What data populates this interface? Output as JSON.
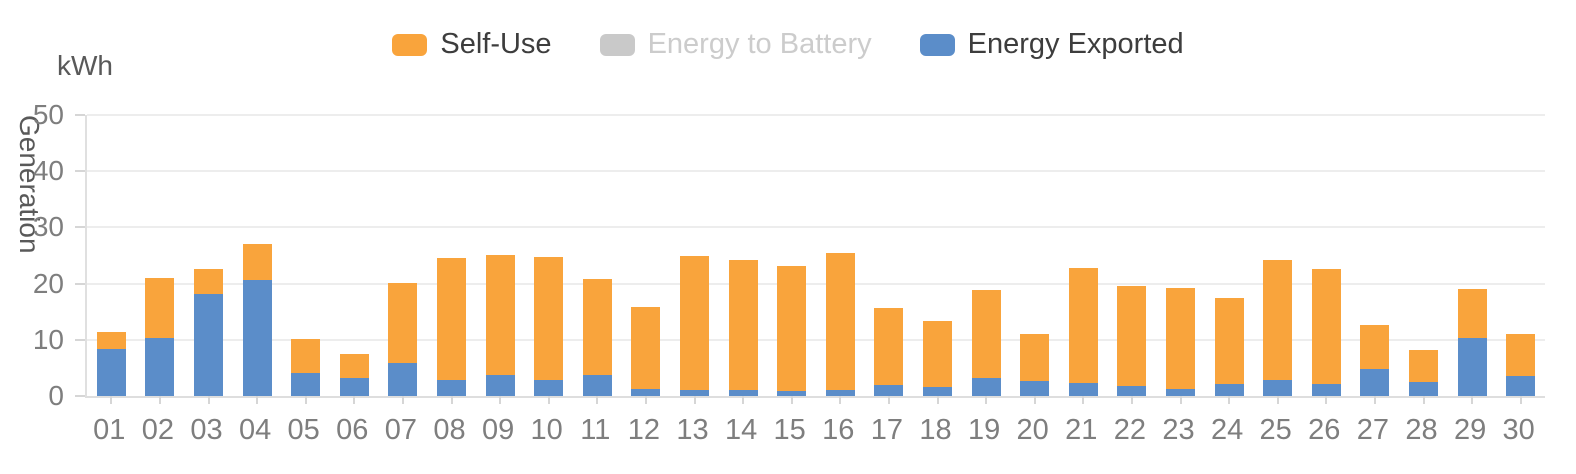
{
  "chart_data": {
    "type": "bar",
    "stacked": true,
    "title": "",
    "unit": "kWh",
    "ylabel": "Generation",
    "xlabel": "",
    "ylim": [
      0,
      50
    ],
    "y_ticks": [
      0,
      10,
      20,
      30,
      40,
      50
    ],
    "grid": true,
    "legend_position": "top-center",
    "categories": [
      "01",
      "02",
      "03",
      "04",
      "05",
      "06",
      "07",
      "08",
      "09",
      "10",
      "11",
      "12",
      "13",
      "14",
      "15",
      "16",
      "17",
      "18",
      "19",
      "20",
      "21",
      "22",
      "23",
      "24",
      "25",
      "26",
      "27",
      "28",
      "29",
      "30"
    ],
    "stack_bottom_to_top": [
      "Energy Exported",
      "Self-Use"
    ],
    "series": [
      {
        "name": "Self-Use",
        "color": "#f9a43c",
        "active": true,
        "values": [
          3.1,
          10.6,
          4.5,
          6.4,
          6.0,
          4.3,
          14.3,
          21.8,
          21.4,
          22.0,
          17.0,
          14.7,
          24.0,
          23.1,
          22.2,
          24.4,
          13.7,
          11.7,
          15.6,
          8.5,
          20.4,
          17.7,
          18.0,
          15.2,
          21.3,
          20.5,
          7.8,
          5.6,
          8.7,
          7.4
        ]
      },
      {
        "name": "Energy to Battery",
        "color": "#c9c9c9",
        "active": false,
        "values": []
      },
      {
        "name": "Energy Exported",
        "color": "#5b8dc9",
        "active": true,
        "values": [
          8.3,
          10.4,
          18.1,
          20.6,
          4.1,
          3.2,
          5.8,
          2.8,
          3.7,
          2.8,
          3.8,
          1.2,
          1.0,
          1.1,
          0.9,
          1.1,
          2.0,
          1.6,
          3.2,
          2.6,
          2.4,
          1.8,
          1.3,
          2.2,
          2.9,
          2.1,
          4.8,
          2.5,
          10.4,
          3.6
        ]
      }
    ],
    "colors": {
      "axis_line": "#e0e0e0",
      "gridline": "#ededed",
      "tick": "#d6d6d6",
      "axis_text": "#7e7e7e",
      "title_text": "#595959",
      "legend_text": "#3d3d3d",
      "legend_disabled_text": "#cccccc"
    }
  }
}
